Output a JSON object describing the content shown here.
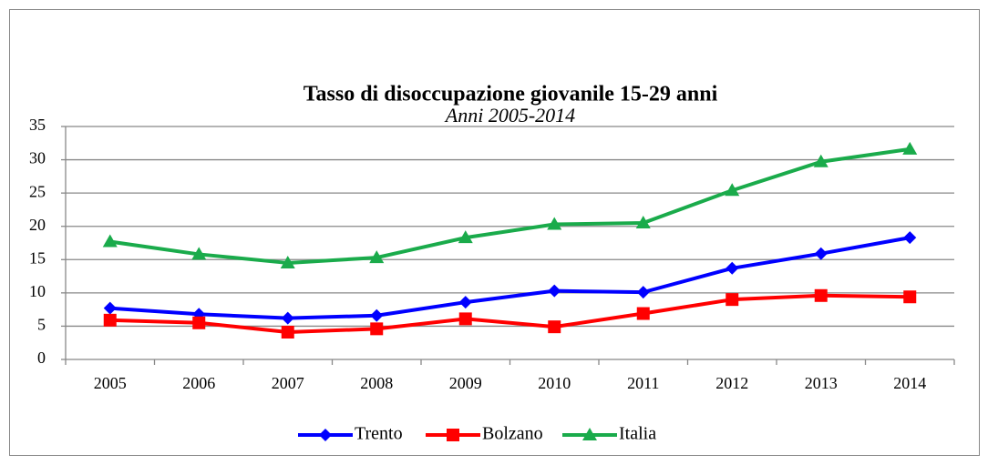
{
  "chart_data": {
    "type": "line",
    "title": "Tasso di disoccupazione giovanile 15-29 anni",
    "subtitle": "Anni 2005-2014",
    "categories": [
      "2005",
      "2006",
      "2007",
      "2008",
      "2009",
      "2010",
      "2011",
      "2012",
      "2013",
      "2014"
    ],
    "series": [
      {
        "name": "Trento",
        "color": "#0000ff",
        "marker": "diamond",
        "values": [
          7.7,
          6.8,
          6.2,
          6.6,
          8.6,
          10.3,
          10.1,
          13.7,
          15.9,
          18.3
        ]
      },
      {
        "name": "Bolzano",
        "color": "#ff0000",
        "marker": "square",
        "values": [
          5.9,
          5.5,
          4.1,
          4.6,
          6.1,
          4.9,
          6.9,
          9.0,
          9.6,
          9.4
        ]
      },
      {
        "name": "Italia",
        "color": "#1aab4b",
        "marker": "triangle",
        "values": [
          17.7,
          15.8,
          14.5,
          15.3,
          18.3,
          20.3,
          20.5,
          25.4,
          29.7,
          31.6
        ]
      }
    ],
    "ylim": [
      0,
      35
    ],
    "yticks": [
      0,
      5,
      10,
      15,
      20,
      25,
      30,
      35
    ],
    "grid": true,
    "legend": "bottom"
  }
}
